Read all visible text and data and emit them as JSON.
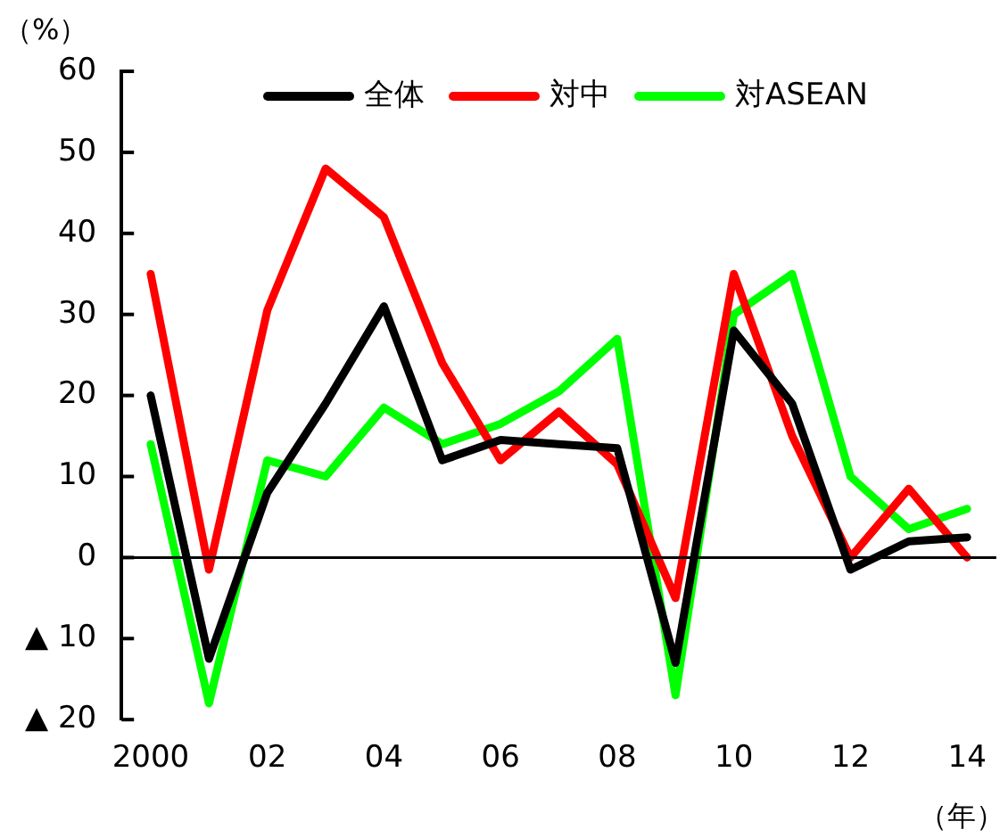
{
  "chart_data": {
    "type": "line",
    "ylabel": "（%）",
    "xlabel": "（年）",
    "categories": [
      "2000",
      null,
      "02",
      null,
      "04",
      null,
      "06",
      null,
      "08",
      null,
      "10",
      null,
      "12",
      null,
      "14"
    ],
    "series": [
      {
        "name": "全体",
        "color": "#000000",
        "values": [
          20,
          -12.5,
          8,
          19,
          31,
          12,
          14.5,
          14,
          13.5,
          -13,
          28,
          19,
          -1.5,
          2,
          2.5
        ]
      },
      {
        "name": "対中",
        "color": "#ff0000",
        "values": [
          35,
          -1.5,
          30.5,
          48,
          42,
          24,
          12,
          18,
          11.5,
          -5,
          35,
          15,
          0,
          8.5,
          0
        ]
      },
      {
        "name": "対ASEAN",
        "color": "#00ff00",
        "values": [
          14,
          -18,
          12,
          10,
          18.5,
          14,
          16.5,
          20.5,
          27,
          -17,
          30,
          35,
          10,
          3.5,
          6
        ]
      }
    ],
    "ylim": [
      -20,
      60
    ],
    "yticks": [
      {
        "value": -20,
        "label": "▲ 20"
      },
      {
        "value": -10,
        "label": "▲ 10"
      },
      0,
      10,
      20,
      30,
      40,
      50,
      60
    ],
    "ref_lines": [
      {
        "axis": "y",
        "value": 0,
        "color": "#000000",
        "line_style": "solid"
      }
    ],
    "legend": "top",
    "grid": false,
    "marker": "none",
    "line_style": "solid"
  }
}
